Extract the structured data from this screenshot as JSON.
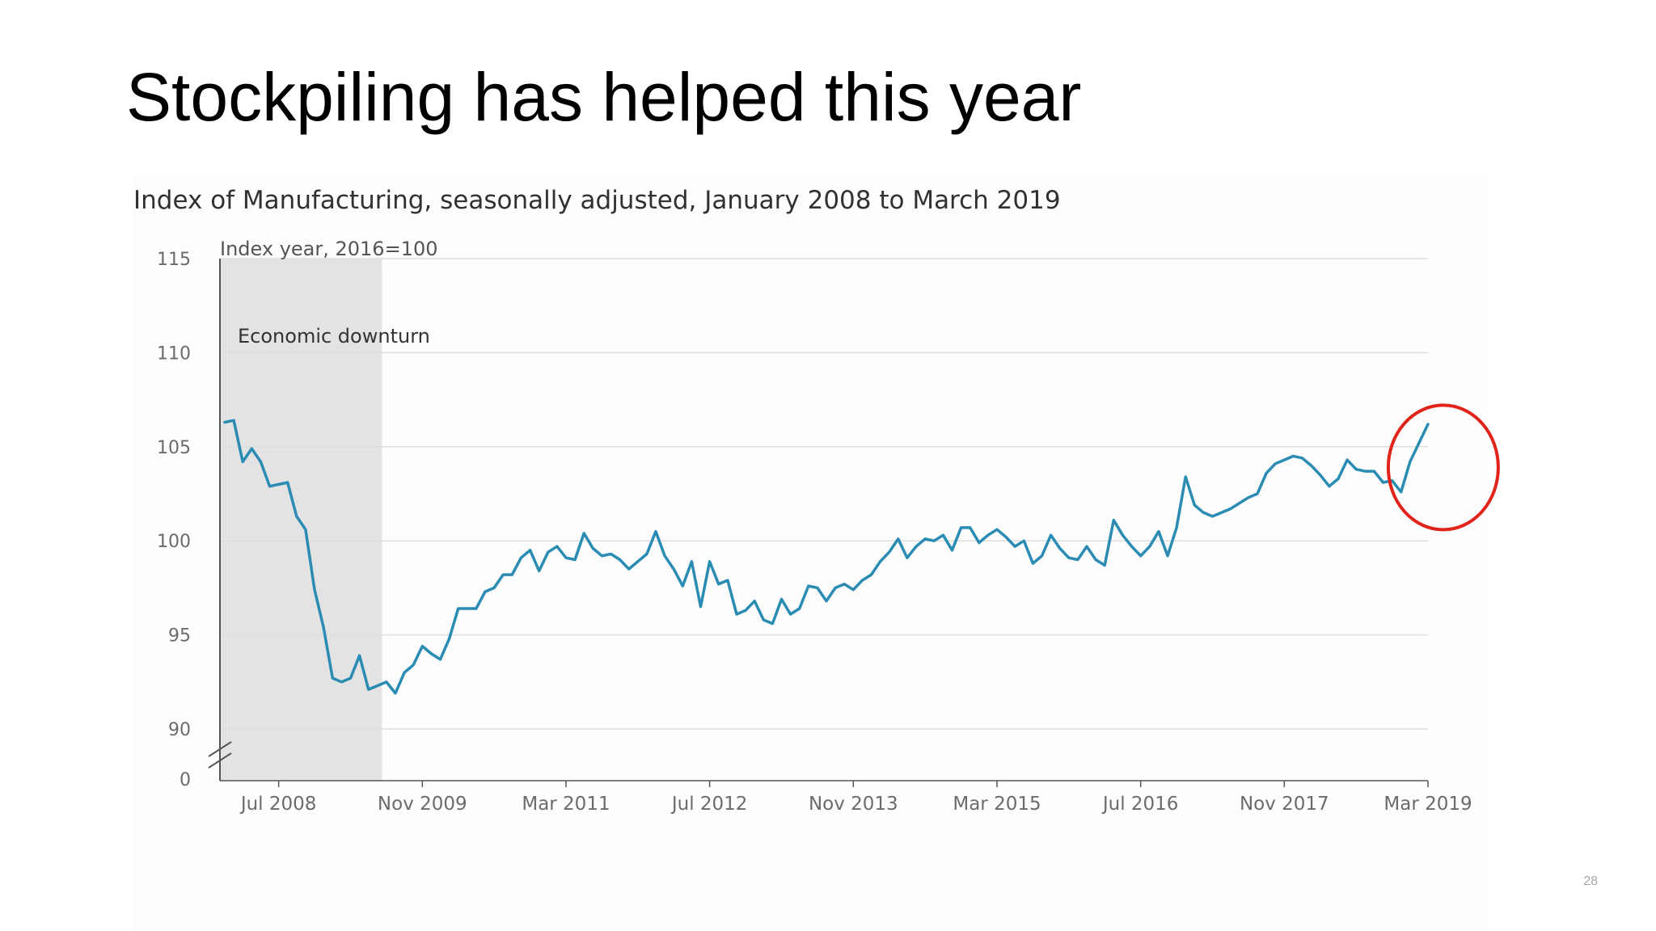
{
  "slide": {
    "title": "Stockpiling has helped this year",
    "slide_number": "28"
  },
  "colors": {
    "line": "#2a8bb3",
    "shade": "#e3e3e4",
    "grid": "#dedede",
    "axis_text": "#6b6b6b",
    "highlight": "#e2231a"
  },
  "chart_data": {
    "type": "line",
    "title": "Index of Manufacturing, seasonally adjusted, January 2008 to March 2019",
    "unit_label": "Index year, 2016=100",
    "x_start": "Jan 2008",
    "x_end": "Mar 2019",
    "ylim": [
      90,
      115
    ],
    "y_ticks": [
      "115",
      "110",
      "105",
      "100",
      "95",
      "90",
      "0"
    ],
    "x_ticks": [
      {
        "label": "Jul 2008",
        "date": "2008-07"
      },
      {
        "label": "Nov 2009",
        "date": "2009-11"
      },
      {
        "label": "Mar 2011",
        "date": "2011-03"
      },
      {
        "label": "Jul 2012",
        "date": "2012-07"
      },
      {
        "label": "Nov 2013",
        "date": "2013-11"
      },
      {
        "label": "Mar 2015",
        "date": "2015-03"
      },
      {
        "label": "Jul 2016",
        "date": "2016-07"
      },
      {
        "label": "Nov 2017",
        "date": "2017-11"
      },
      {
        "label": "Mar 2019",
        "date": "2019-03"
      }
    ],
    "grid": true,
    "axis_break": true,
    "shaded_region": {
      "label": "Economic downturn",
      "start": "Jan 2008",
      "end": "Jun 2009"
    },
    "highlight": {
      "shape": "circle",
      "color": "red",
      "start": "Jan 2019",
      "end": "Mar 2019"
    },
    "series": [
      {
        "values": [
          106.3,
          106.4,
          104.2,
          104.9,
          104.2,
          102.9,
          103.0,
          103.1,
          101.3,
          100.6,
          97.4,
          95.4,
          92.7,
          92.5,
          92.7,
          93.9,
          92.1,
          92.3,
          92.5,
          91.9,
          93.0,
          93.4,
          94.4,
          94.0,
          93.7,
          94.8,
          96.4,
          96.4,
          96.4,
          97.3,
          97.5,
          98.2,
          98.2,
          99.1,
          99.5,
          98.4,
          99.4,
          99.7,
          99.1,
          99.0,
          100.4,
          99.6,
          99.2,
          99.3,
          99.0,
          98.5,
          98.9,
          99.3,
          100.5,
          99.2,
          98.5,
          97.6,
          98.9,
          96.5,
          98.9,
          97.7,
          97.9,
          96.1,
          96.3,
          96.8,
          95.8,
          95.6,
          96.9,
          96.1,
          96.4,
          97.6,
          97.5,
          96.8,
          97.5,
          97.7,
          97.4,
          97.9,
          98.2,
          98.9,
          99.4,
          100.1,
          99.1,
          99.7,
          100.1,
          100.0,
          100.3,
          99.5,
          100.7,
          100.7,
          99.9,
          100.3,
          100.6,
          100.2,
          99.7,
          100.0,
          98.8,
          99.2,
          100.3,
          99.6,
          99.1,
          99.0,
          99.7,
          99.0,
          98.7,
          101.1,
          100.3,
          99.7,
          99.2,
          99.7,
          100.5,
          99.2,
          100.7,
          103.4,
          101.9,
          101.5,
          101.3,
          101.5,
          101.7,
          102.0,
          102.3,
          102.5,
          103.6,
          104.1,
          104.3,
          104.5,
          104.4,
          104.0,
          103.5,
          102.9,
          103.3,
          104.3,
          103.8,
          103.7,
          103.7,
          103.1,
          103.2,
          102.6,
          104.2,
          105.2,
          106.2
        ]
      }
    ]
  }
}
